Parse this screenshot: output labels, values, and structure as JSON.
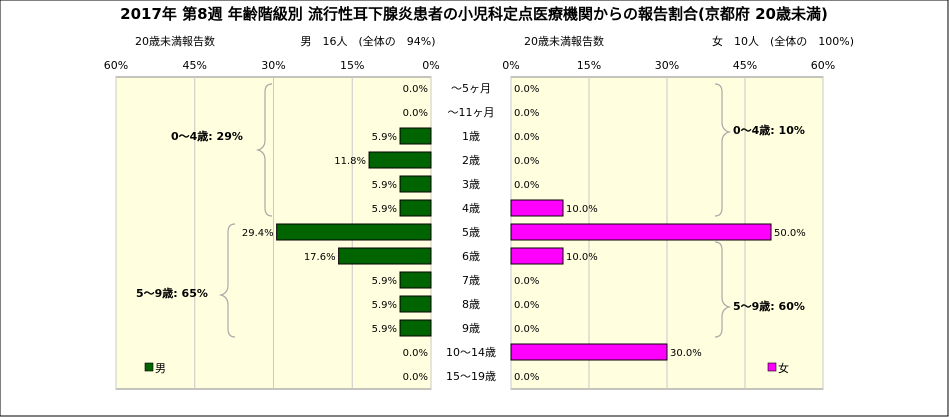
{
  "title": "2017年 第8週 年齢階級別 流行性耳下腺炎患者の小児科定点医療機関からの報告割合(京都府 20歳未満)",
  "left_header": {
    "label": "20歳未満報告数",
    "summary": "男　16人　(全体の　94%)"
  },
  "right_header": {
    "label": "20歳未満報告数",
    "summary": "女　10人　(全体の　100%)"
  },
  "colors": {
    "male": "#006400",
    "female": "#ff00ff",
    "panel_bg": "#ffffe0"
  },
  "chart_data": {
    "type": "bar",
    "orientation": "horizontal-butterfly",
    "categories": [
      "〜5ヶ月",
      "〜11ヶ月",
      "1歳",
      "2歳",
      "3歳",
      "4歳",
      "5歳",
      "6歳",
      "7歳",
      "8歳",
      "9歳",
      "10〜14歳",
      "15〜19歳"
    ],
    "xlim": [
      0,
      60
    ],
    "ticks": [
      "60%",
      "45%",
      "30%",
      "15%",
      "0%"
    ],
    "ticks_right": [
      "0%",
      "15%",
      "30%",
      "45%",
      "60%"
    ],
    "series": [
      {
        "name": "男",
        "side": "left",
        "values": [
          0.0,
          0.0,
          5.9,
          11.8,
          5.9,
          5.9,
          29.4,
          17.6,
          5.9,
          5.9,
          5.9,
          0.0,
          0.0
        ],
        "labels": [
          "0.0%",
          "0.0%",
          "5.9%",
          "11.8%",
          "5.9%",
          "5.9%",
          "29.4%",
          "17.6%",
          "5.9%",
          "5.9%",
          "5.9%",
          "0.0%",
          "0.0%"
        ]
      },
      {
        "name": "女",
        "side": "right",
        "values": [
          0.0,
          0.0,
          0.0,
          0.0,
          0.0,
          10.0,
          50.0,
          10.0,
          0.0,
          0.0,
          0.0,
          30.0,
          0.0
        ],
        "labels": [
          "0.0%",
          "0.0%",
          "0.0%",
          "0.0%",
          "0.0%",
          "10.0%",
          "50.0%",
          "10.0%",
          "0.0%",
          "0.0%",
          "0.0%",
          "30.0%",
          "0.0%"
        ]
      }
    ],
    "annotations": {
      "male_0_4": "0〜4歳: 29%",
      "male_5_9": "5〜9歳: 65%",
      "female_0_4": "0〜4歳: 10%",
      "female_5_9": "5〜9歳: 60%"
    },
    "grid": true,
    "legend": "bottom"
  }
}
